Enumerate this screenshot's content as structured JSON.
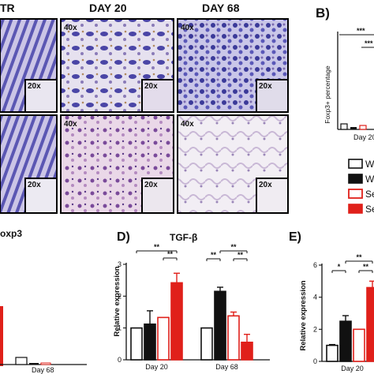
{
  "panel_a": {
    "col_headers": [
      "TR",
      "DAY 20",
      "DAY 68"
    ],
    "mag_40": "40x",
    "mag_20": "20x"
  },
  "panel_b": {
    "letter": "B)",
    "ylabel": "Foxp3+ percentage",
    "xlabel": "Day 20",
    "sig": [
      "***",
      "***"
    ]
  },
  "legend": {
    "items": [
      {
        "label": "W",
        "fill": "#ffffff",
        "stroke": "#111111"
      },
      {
        "label": "W",
        "fill": "#111111",
        "stroke": "#111111"
      },
      {
        "label": "Se",
        "fill": "#ffffff",
        "stroke": "#e0201a"
      },
      {
        "label": "Se",
        "fill": "#e0201a",
        "stroke": "#e0201a"
      }
    ]
  },
  "panel_c": {
    "title": "oxp3",
    "xlabel": "Day 68"
  },
  "colors": {
    "black": "#111111",
    "red": "#e0201a",
    "white": "#ffffff"
  },
  "chart_data": [
    {
      "panel": "D)",
      "type": "bar",
      "title": "TGF-β",
      "ylabel": "Relative expression",
      "categories": [
        "Day 20",
        "Day 68"
      ],
      "yticks": [
        "0",
        "1",
        "2",
        "3"
      ],
      "ylim": [
        0,
        3
      ],
      "series": [
        {
          "values": [
            1.0,
            1.0
          ],
          "errors": [
            0,
            0
          ],
          "fill": "#ffffff",
          "stroke": "#111111"
        },
        {
          "values": [
            1.12,
            2.15
          ],
          "errors": [
            0.42,
            0.13
          ],
          "fill": "#111111",
          "stroke": "#111111"
        },
        {
          "values": [
            1.33,
            1.38
          ],
          "errors": [
            0,
            0.12
          ],
          "fill": "#ffffff",
          "stroke": "#e0201a"
        },
        {
          "values": [
            2.42,
            0.55
          ],
          "errors": [
            0.3,
            0.25
          ],
          "fill": "#e0201a",
          "stroke": "#e0201a"
        }
      ],
      "sig": [
        "**",
        "**",
        "**",
        "**",
        "**"
      ]
    },
    {
      "panel": "E)",
      "type": "bar",
      "ylabel": "Relative expression",
      "categories": [
        "Day 20"
      ],
      "yticks": [
        "0",
        "2",
        "4",
        "6"
      ],
      "ylim": [
        0,
        6
      ],
      "series": [
        {
          "values": [
            1.0
          ],
          "errors": [
            0.05
          ],
          "fill": "#ffffff",
          "stroke": "#111111"
        },
        {
          "values": [
            2.5
          ],
          "errors": [
            0.35
          ],
          "fill": "#111111",
          "stroke": "#111111"
        },
        {
          "values": [
            2.0
          ],
          "errors": [
            0
          ],
          "fill": "#ffffff",
          "stroke": "#e0201a"
        },
        {
          "values": [
            4.6
          ],
          "errors": [
            0.4
          ],
          "fill": "#e0201a",
          "stroke": "#e0201a"
        }
      ],
      "sig": [
        "*",
        "**",
        "**"
      ]
    }
  ]
}
